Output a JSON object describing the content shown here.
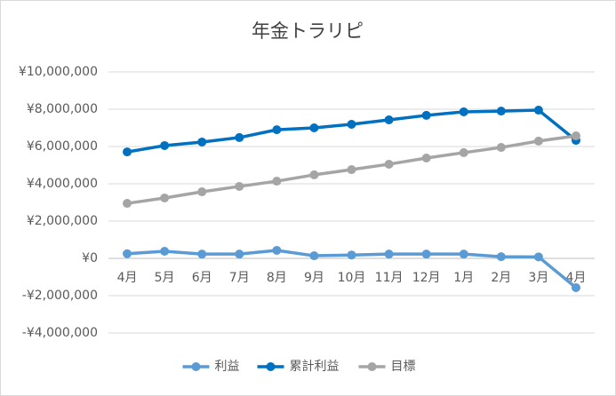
{
  "chart_data": {
    "type": "line",
    "title": "年金トラリピ",
    "categories": [
      "4月",
      "5月",
      "6月",
      "7月",
      "8月",
      "9月",
      "10月",
      "11月",
      "12月",
      "1月",
      "2月",
      "3月",
      "4月"
    ],
    "series": [
      {
        "name": "利益",
        "color": "#5b9bd5",
        "values": [
          250000,
          380000,
          230000,
          230000,
          430000,
          140000,
          180000,
          230000,
          230000,
          230000,
          90000,
          80000,
          -1570000
        ]
      },
      {
        "name": "累計利益",
        "color": "#0070c0",
        "values": [
          5710000,
          6050000,
          6240000,
          6480000,
          6900000,
          7000000,
          7190000,
          7430000,
          7670000,
          7860000,
          7900000,
          7950000,
          6330000
        ]
      },
      {
        "name": "目標",
        "color": "#a5a5a5",
        "values": [
          2950000,
          3240000,
          3570000,
          3860000,
          4140000,
          4480000,
          4760000,
          5050000,
          5380000,
          5670000,
          5950000,
          6290000,
          6570000
        ]
      }
    ],
    "ylim": [
      -4000000,
      10000000
    ],
    "yticks": [
      {
        "value": -4000000,
        "label": "-¥4,000,000"
      },
      {
        "value": -2000000,
        "label": "-¥2,000,000"
      },
      {
        "value": 0,
        "label": "¥0"
      },
      {
        "value": 2000000,
        "label": "¥2,000,000"
      },
      {
        "value": 4000000,
        "label": "¥4,000,000"
      },
      {
        "value": 6000000,
        "label": "¥6,000,000"
      },
      {
        "value": 8000000,
        "label": "¥8,000,000"
      },
      {
        "value": 10000000,
        "label": "¥10,000,000"
      }
    ],
    "grid": true,
    "legend": "bottom"
  }
}
